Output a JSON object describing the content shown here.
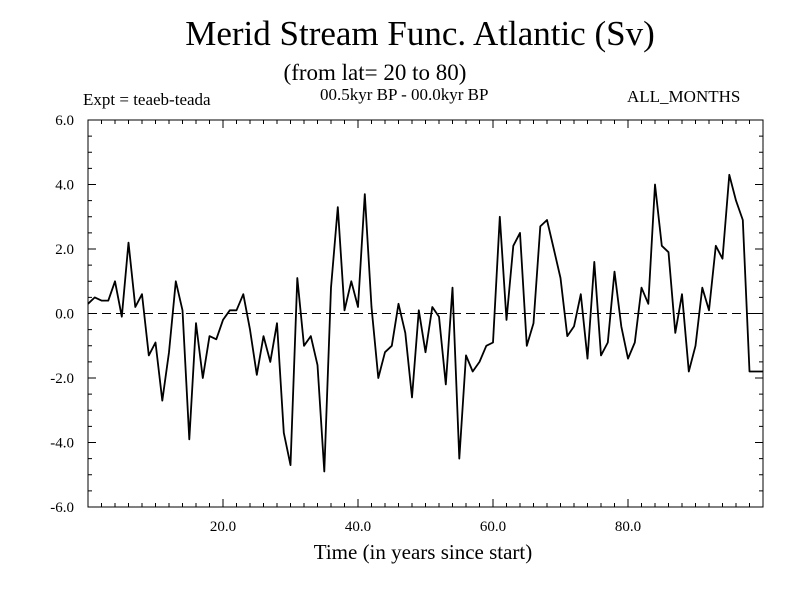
{
  "chart_data": {
    "type": "line",
    "title": "Merid Stream Func. Atlantic (Sv)",
    "subtitle": "(from lat= 20 to 80)",
    "experiment_label": "Expt = teaeb-teada",
    "period_label": "00.5kyr BP - 00.0kyr BP",
    "months_label": "ALL_MONTHS",
    "xlabel": "Time (in years since start)",
    "ylabel": "",
    "xlim": [
      0,
      100
    ],
    "ylim": [
      -6,
      6
    ],
    "x_ticks": [
      20,
      40,
      60,
      80
    ],
    "x_tick_labels": [
      "20.0",
      "40.0",
      "60.0",
      "80.0"
    ],
    "y_ticks": [
      -6,
      -4,
      -2,
      0,
      2,
      4,
      6
    ],
    "y_tick_labels": [
      "-6.0",
      "-4.0",
      "-2.0",
      "0.0",
      "2.0",
      "4.0",
      "6.0"
    ],
    "reference_line": 0,
    "series": [
      {
        "name": "teaeb-teada",
        "x": [
          0,
          1,
          2,
          3,
          4,
          5,
          6,
          7,
          8,
          9,
          10,
          11,
          12,
          13,
          14,
          15,
          16,
          17,
          18,
          19,
          20,
          21,
          22,
          23,
          24,
          25,
          26,
          27,
          28,
          29,
          30,
          31,
          32,
          33,
          34,
          35,
          36,
          37,
          38,
          39,
          40,
          41,
          42,
          43,
          44,
          45,
          46,
          47,
          48,
          49,
          50,
          51,
          52,
          53,
          54,
          55,
          56,
          57,
          58,
          59,
          60,
          61,
          62,
          63,
          64,
          65,
          66,
          67,
          68,
          69,
          70,
          71,
          72,
          73,
          74,
          75,
          76,
          77,
          78,
          79,
          80,
          81,
          82,
          83,
          84,
          85,
          86,
          87,
          88,
          89,
          90,
          91,
          92,
          93,
          94,
          95,
          96,
          97,
          98,
          99,
          100
        ],
        "values": [
          0.3,
          0.5,
          0.4,
          0.4,
          1.0,
          -0.1,
          2.2,
          0.2,
          0.6,
          -1.3,
          -0.9,
          -2.7,
          -1.2,
          1.0,
          0.1,
          -3.9,
          -0.3,
          -2.0,
          -0.7,
          -0.8,
          -0.2,
          0.1,
          0.1,
          0.6,
          -0.5,
          -1.9,
          -0.7,
          -1.5,
          -0.3,
          -3.7,
          -4.7,
          1.1,
          -1.0,
          -0.7,
          -1.6,
          -4.9,
          0.8,
          3.3,
          0.1,
          1.0,
          0.2,
          3.7,
          0.2,
          -2.0,
          -1.2,
          -1.0,
          0.3,
          -0.6,
          -2.6,
          0.1,
          -1.2,
          0.2,
          -0.1,
          -2.2,
          0.8,
          -4.5,
          -1.3,
          -1.8,
          -1.5,
          -1.0,
          -0.9,
          3.0,
          -0.2,
          2.1,
          2.5,
          -1.0,
          -0.3,
          2.7,
          2.9,
          2.0,
          1.1,
          -0.7,
          -0.4,
          0.6,
          -1.4,
          1.6,
          -1.3,
          -0.9,
          1.3,
          -0.4,
          -1.4,
          -0.9,
          0.8,
          0.3,
          4.0,
          2.1,
          1.9,
          -0.6,
          0.6,
          -1.8,
          -1.0,
          0.8,
          0.1,
          2.1,
          1.7,
          4.3,
          3.5,
          2.9,
          -1.8,
          -1.8,
          -1.8
        ]
      }
    ]
  }
}
